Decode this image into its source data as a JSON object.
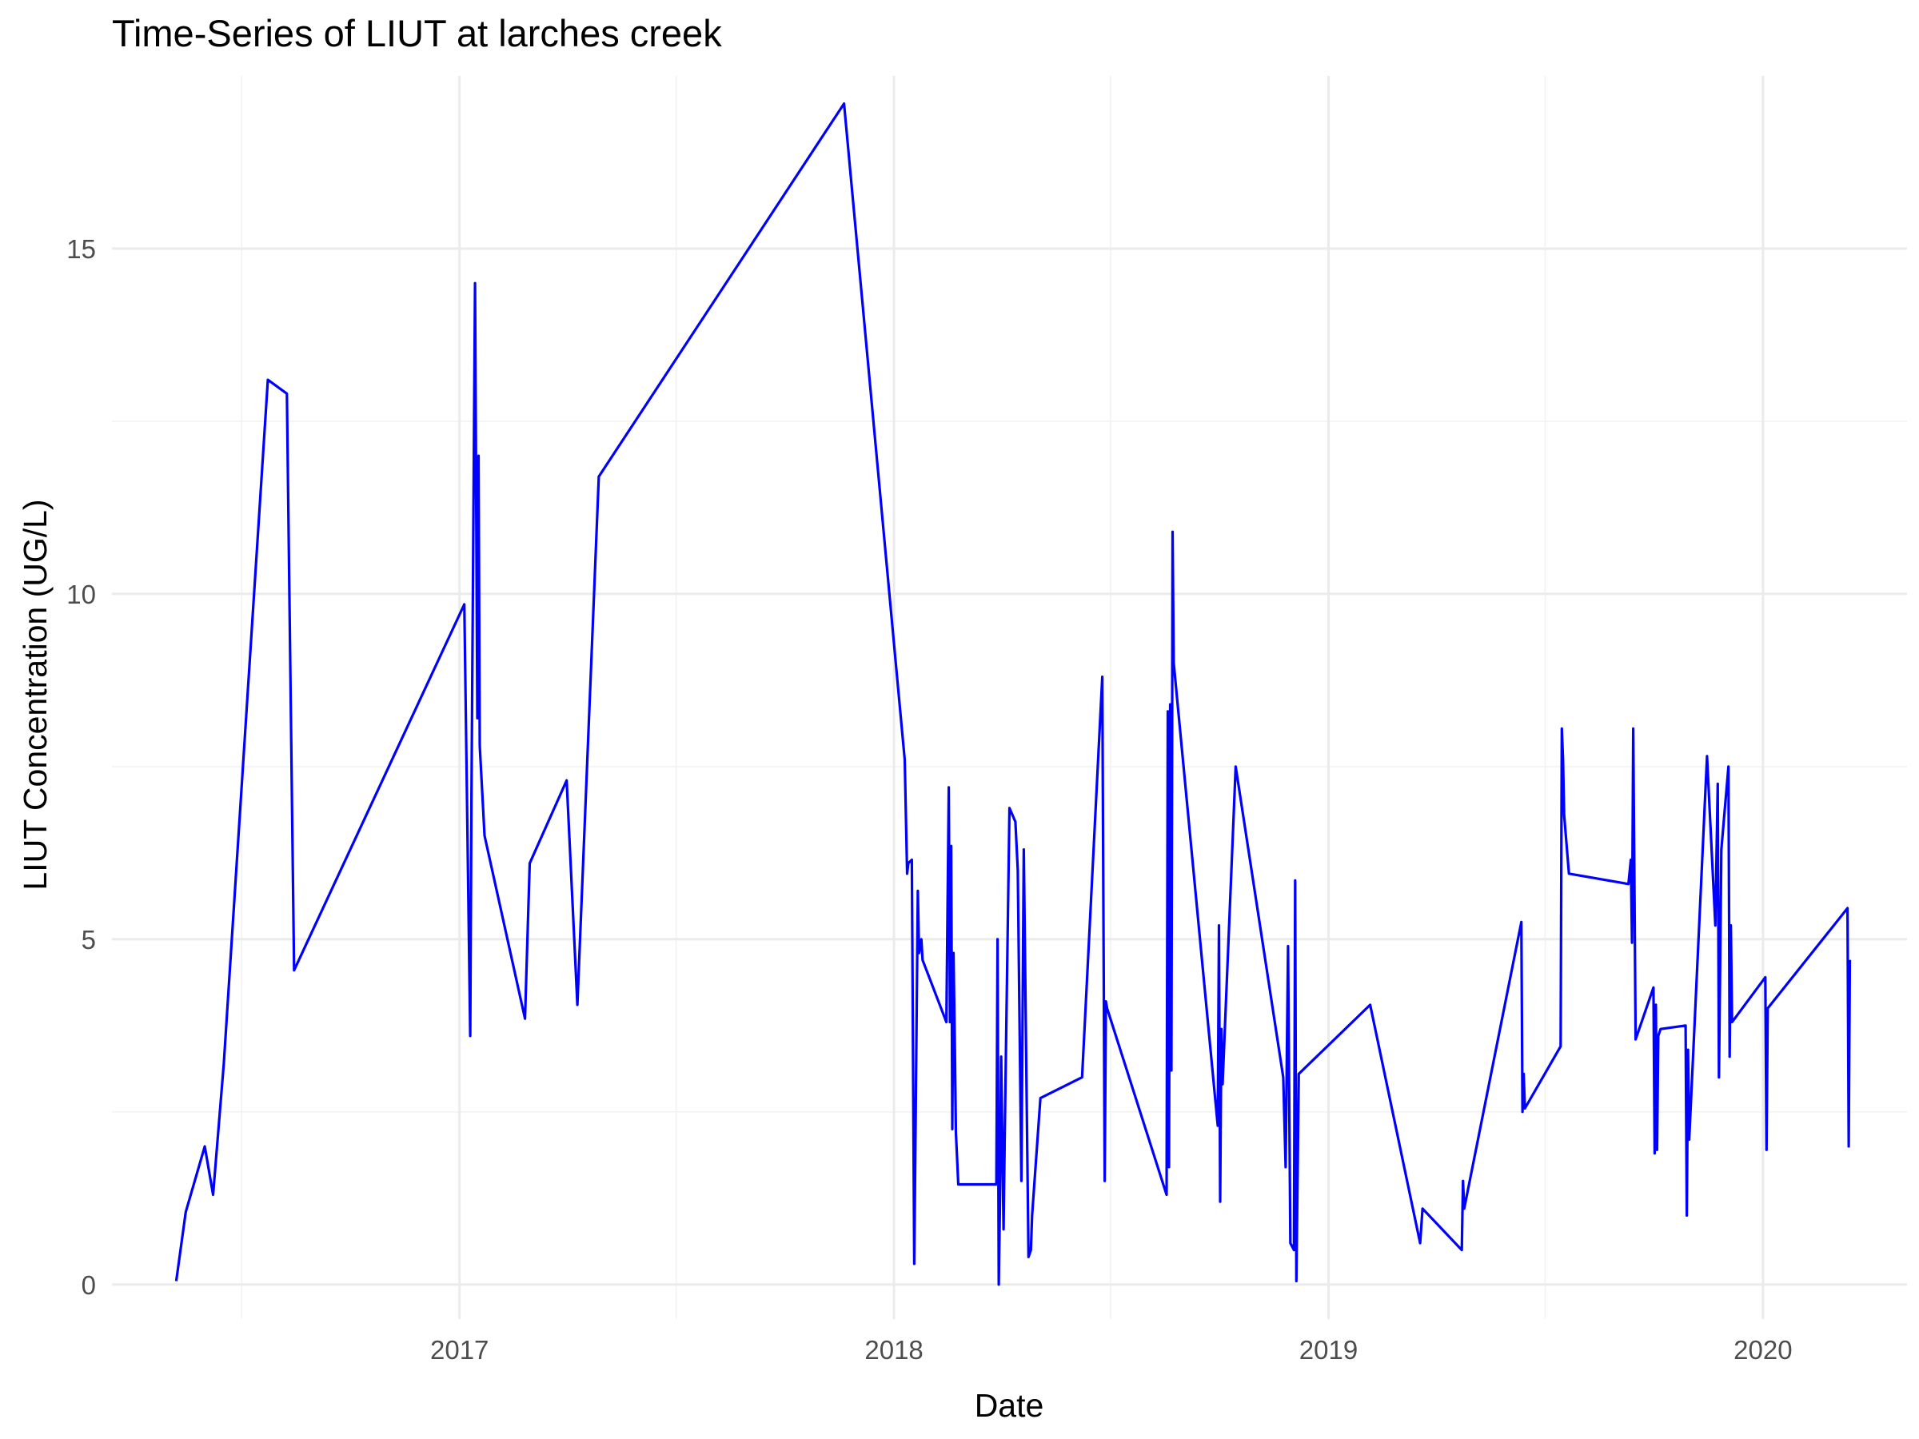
{
  "chart_data": {
    "type": "line",
    "title": "Time-Series of LIUT at larches creek",
    "xlabel": "Date",
    "ylabel": "LIUT Concentration (UG/L)",
    "xlim": [
      "2016-03-15",
      "2020-05-01"
    ],
    "ylim": [
      -0.5,
      17.5
    ],
    "x_ticks": [
      "2017",
      "2018",
      "2019",
      "2020"
    ],
    "y_ticks": [
      0,
      5,
      10,
      15
    ],
    "grid": true,
    "legend": "none",
    "line_color": "#0000ff",
    "series": [
      {
        "x": [
          "2016-05-08",
          "2016-05-16",
          "2016-06-01",
          "2016-06-08",
          "2016-06-17",
          "2016-07-24",
          "2016-08-09",
          "2016-08-15",
          "2017-01-05",
          "2017-01-10",
          "2017-01-11",
          "2017-01-14",
          "2017-01-16",
          "2017-01-17",
          "2017-01-18",
          "2017-01-22",
          "2017-02-25",
          "2017-03-01",
          "2017-04-01",
          "2017-04-10",
          "2017-04-28",
          "2017-11-20",
          "2018-01-10",
          "2018-01-12",
          "2018-01-13",
          "2018-01-16",
          "2018-01-18",
          "2018-01-21",
          "2018-01-22",
          "2018-01-24",
          "2018-01-25",
          "2018-02-14",
          "2018-02-16",
          "2018-02-17",
          "2018-02-18",
          "2018-02-19",
          "2018-02-20",
          "2018-02-21",
          "2018-02-22",
          "2018-02-24",
          "2018-03-01",
          "2018-03-28",
          "2018-03-29",
          "2018-03-30",
          "2018-03-31",
          "2018-04-01",
          "2018-04-03",
          "2018-04-04",
          "2018-04-08",
          "2018-04-13",
          "2018-04-15",
          "2018-04-18",
          "2018-04-20",
          "2018-04-24",
          "2018-04-26",
          "2018-04-27",
          "2018-05-04",
          "2018-06-08",
          "2018-06-25",
          "2018-06-27",
          "2018-06-28",
          "2018-06-29",
          "2018-08-18",
          "2018-08-19",
          "2018-08-20",
          "2018-08-21",
          "2018-08-22",
          "2018-08-23",
          "2018-08-24",
          "2018-09-30",
          "2018-10-01",
          "2018-10-02",
          "2018-10-03",
          "2018-10-04",
          "2018-10-15",
          "2018-11-24",
          "2018-11-26",
          "2018-11-28",
          "2018-11-30",
          "2018-12-03",
          "2018-12-04",
          "2018-12-05",
          "2018-12-07",
          "2019-02-05",
          "2019-03-19",
          "2019-03-21",
          "2019-04-23",
          "2019-04-24",
          "2019-04-25",
          "2019-06-12",
          "2019-06-13",
          "2019-06-14",
          "2019-06-15",
          "2019-07-15",
          "2019-07-16",
          "2019-07-17",
          "2019-07-18",
          "2019-07-22",
          "2019-09-10",
          "2019-09-12",
          "2019-09-13",
          "2019-09-14",
          "2019-09-16",
          "2019-10-01",
          "2019-10-02",
          "2019-10-03",
          "2019-10-04",
          "2019-10-05",
          "2019-10-07",
          "2019-10-28",
          "2019-10-29",
          "2019-10-30",
          "2019-10-31",
          "2019-11-15",
          "2019-11-22",
          "2019-11-24",
          "2019-11-25",
          "2019-11-26",
          "2019-11-27",
          "2019-12-03",
          "2019-12-04",
          "2019-12-05",
          "2019-12-06",
          "2020-01-03",
          "2020-01-04",
          "2020-01-05",
          "2020-03-12",
          "2020-03-13",
          "2020-03-14"
        ],
        "y": [
          0.05,
          1.05,
          2.0,
          1.3,
          3.2,
          13.1,
          12.9,
          4.55,
          9.85,
          3.6,
          7.0,
          14.5,
          8.2,
          12.0,
          7.8,
          6.5,
          3.85,
          6.1,
          7.3,
          4.05,
          11.7,
          17.1,
          7.6,
          5.95,
          6.1,
          6.15,
          0.3,
          5.7,
          4.8,
          5.0,
          4.7,
          3.8,
          7.2,
          3.8,
          6.35,
          2.25,
          4.8,
          3.6,
          2.2,
          1.45,
          1.45,
          1.45,
          5.0,
          0.0,
          1.2,
          3.3,
          0.8,
          2.1,
          6.9,
          6.7,
          6.0,
          1.5,
          6.3,
          0.4,
          0.5,
          1.0,
          2.7,
          3.0,
          8.8,
          1.5,
          4.1,
          4.0,
          1.3,
          8.3,
          1.7,
          8.4,
          3.1,
          10.9,
          9.0,
          2.3,
          5.2,
          1.2,
          3.7,
          2.9,
          7.5,
          3.0,
          1.7,
          4.9,
          0.6,
          0.5,
          5.85,
          0.05,
          3.05,
          4.05,
          0.6,
          1.1,
          0.5,
          1.5,
          1.1,
          5.25,
          2.5,
          3.05,
          2.55,
          3.45,
          8.05,
          7.6,
          6.8,
          5.95,
          5.8,
          6.15,
          4.95,
          8.05,
          3.55,
          4.3,
          1.9,
          4.05,
          1.95,
          3.6,
          3.7,
          3.75,
          1.0,
          3.4,
          2.1,
          7.65,
          5.2,
          7.25,
          3.0,
          4.6,
          6.3,
          7.5,
          3.3,
          5.2,
          3.8,
          4.45,
          1.95,
          4.0,
          5.45,
          2.0,
          4.7
        ]
      }
    ]
  }
}
